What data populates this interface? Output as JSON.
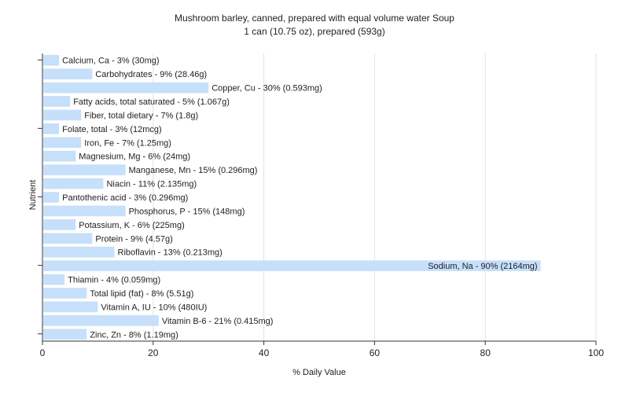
{
  "chart_data": {
    "type": "bar",
    "orientation": "horizontal",
    "title": "Mushroom barley, canned, prepared with equal volume water Soup",
    "subtitle": "1 can (10.75 oz), prepared (593g)",
    "xlabel": "% Daily Value",
    "ylabel": "Nutrient",
    "xlim": [
      0,
      100
    ],
    "xticks": [
      0,
      20,
      40,
      60,
      80,
      100
    ],
    "grid": true,
    "bar_color": "#c6dffa",
    "categories": [
      "Calcium, Ca",
      "Carbohydrates",
      "Copper, Cu",
      "Fatty acids, total saturated",
      "Fiber, total dietary",
      "Folate, total",
      "Iron, Fe",
      "Magnesium, Mg",
      "Manganese, Mn",
      "Niacin",
      "Pantothenic acid",
      "Phosphorus, P",
      "Potassium, K",
      "Protein",
      "Riboflavin",
      "Sodium, Na",
      "Thiamin",
      "Total lipid (fat)",
      "Vitamin A, IU",
      "Vitamin B-6",
      "Zinc, Zn"
    ],
    "values": [
      3,
      9,
      30,
      5,
      7,
      3,
      7,
      6,
      15,
      11,
      3,
      15,
      6,
      9,
      13,
      90,
      4,
      8,
      10,
      21,
      8
    ],
    "labels": [
      "Calcium, Ca - 3% (30mg)",
      "Carbohydrates - 9% (28.46g)",
      "Copper, Cu - 30% (0.593mg)",
      "Fatty acids, total saturated - 5% (1.067g)",
      "Fiber, total dietary - 7% (1.8g)",
      "Folate, total - 3% (12mcg)",
      "Iron, Fe - 7% (1.25mg)",
      "Magnesium, Mg - 6% (24mg)",
      "Manganese, Mn - 15% (0.296mg)",
      "Niacin - 11% (2.135mg)",
      "Pantothenic acid - 3% (0.296mg)",
      "Phosphorus, P - 15% (148mg)",
      "Potassium, K - 6% (225mg)",
      "Protein - 9% (4.57g)",
      "Riboflavin - 13% (0.213mg)",
      "Sodium, Na - 90% (2164mg)",
      "Thiamin - 4% (0.059mg)",
      "Total lipid (fat) - 8% (5.51g)",
      "Vitamin A, IU - 10% (480IU)",
      "Vitamin B-6 - 21% (0.415mg)",
      "Zinc, Zn - 8% (1.19mg)"
    ]
  }
}
